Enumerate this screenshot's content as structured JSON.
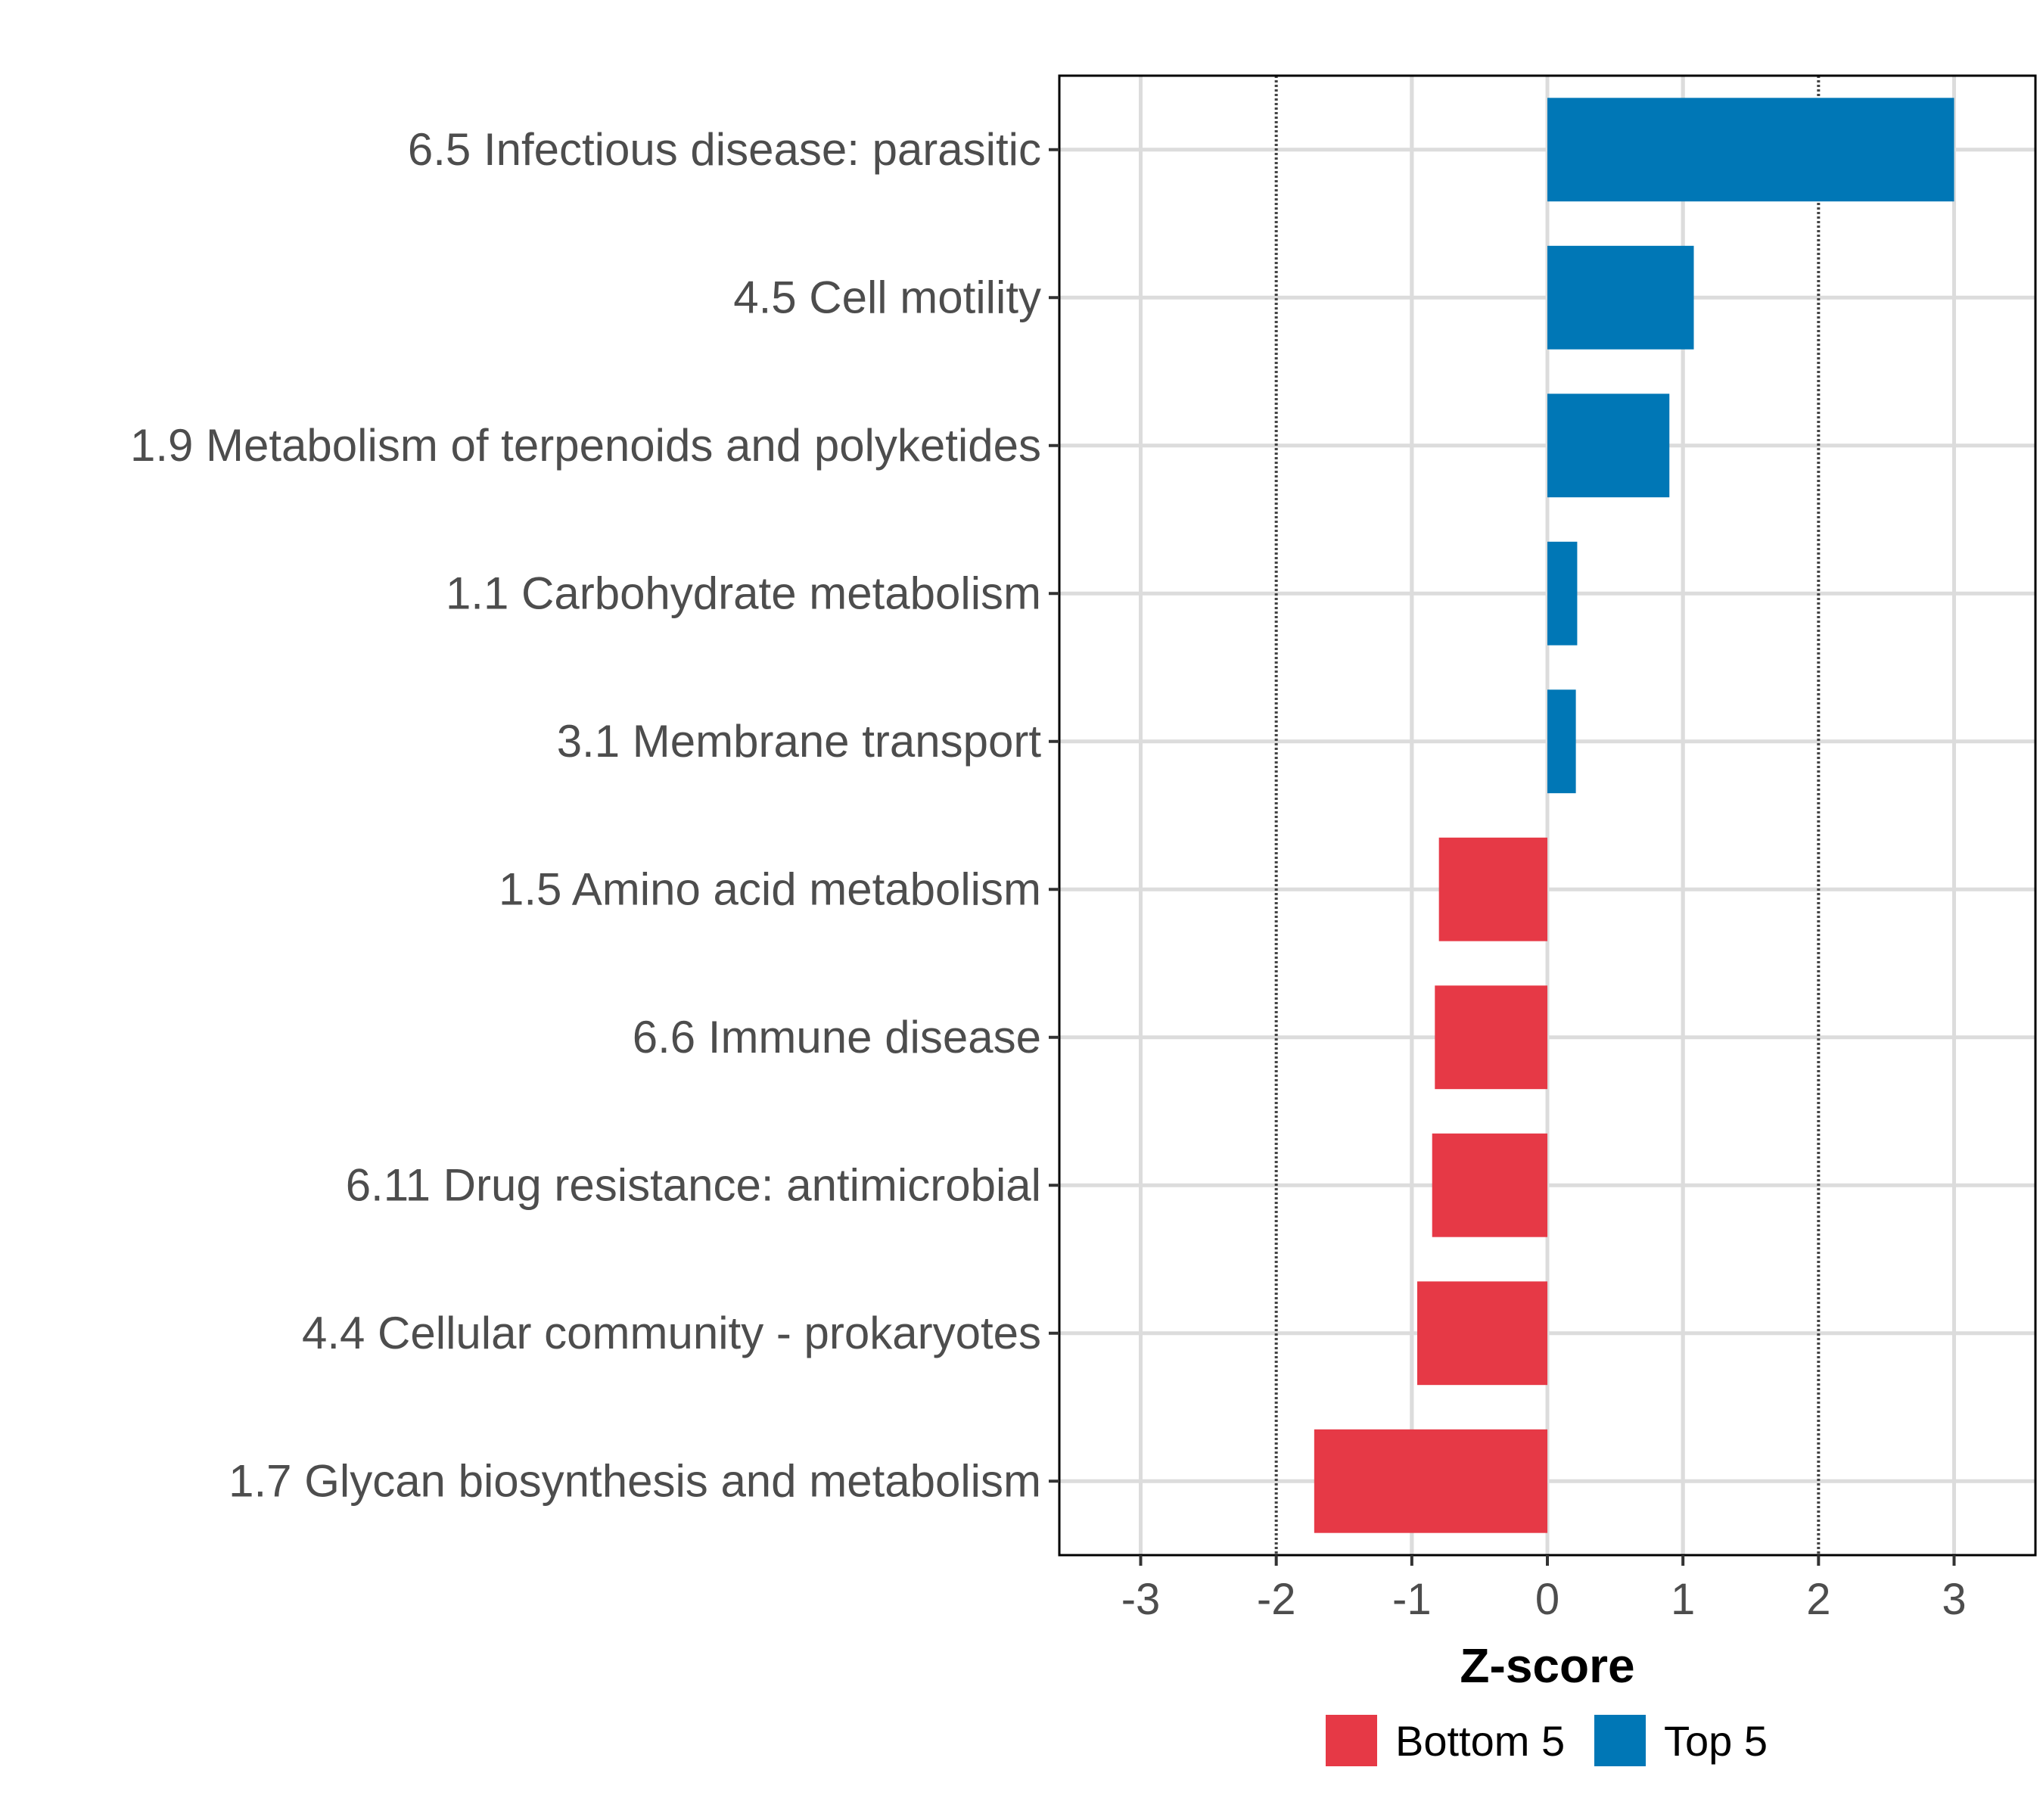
{
  "chart_data": {
    "type": "bar",
    "orientation": "horizontal",
    "categories": [
      "6.5 Infectious disease: parasitic",
      "4.5 Cell motility",
      "1.9 Metabolism of terpenoids and polyketides",
      "1.1 Carbohydrate metabolism",
      "3.1 Membrane transport",
      "1.5 Amino acid metabolism",
      "6.6 Immune disease",
      "6.11 Drug resistance: antimicrobial",
      "4.4 Cellular community - prokaryotes",
      "1.7 Glycan biosynthesis and metabolism"
    ],
    "values": [
      3.0,
      1.08,
      0.9,
      0.22,
      0.21,
      -0.8,
      -0.83,
      -0.85,
      -0.96,
      -1.72
    ],
    "groups": [
      "Top 5",
      "Top 5",
      "Top 5",
      "Top 5",
      "Top 5",
      "Bottom 5",
      "Bottom 5",
      "Bottom 5",
      "Bottom 5",
      "Bottom 5"
    ],
    "xlabel": "Z-score",
    "ylabel": "",
    "xlim": [
      -3.6,
      3.6
    ],
    "xticks": [
      "-3",
      "-2",
      "-1",
      "0",
      "1",
      "2",
      "3"
    ],
    "xtick_values": [
      -3,
      -2,
      -1,
      0,
      1,
      2,
      3
    ],
    "reference_lines": [
      -2,
      2
    ],
    "grid": true,
    "legend": {
      "position": "bottom",
      "entries": [
        {
          "label": "Bottom 5",
          "color": "#E63946"
        },
        {
          "label": "Top 5",
          "color": "#0077B6"
        }
      ]
    },
    "colors": {
      "Bottom 5": "#E63946",
      "Top 5": "#0077B6"
    }
  }
}
